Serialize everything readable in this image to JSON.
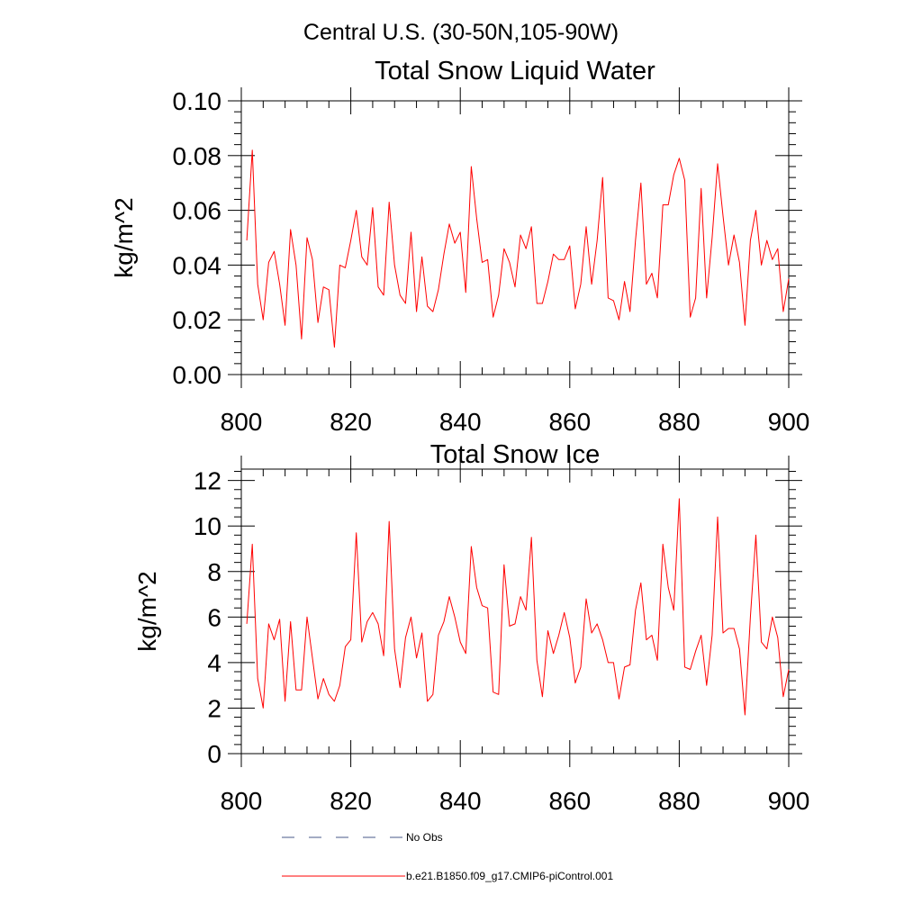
{
  "figure": {
    "title": "Central U.S. (30-50N,105-90W)"
  },
  "legend": {
    "placement": "bottom",
    "entries": [
      {
        "label": "No Obs",
        "color": "#4a5a88",
        "style": "dashed"
      },
      {
        "label": "b.e21.B1850.f09_g17.CMIP6-piControl.001",
        "color": "#ff0000",
        "style": "solid"
      }
    ]
  },
  "chart_data": [
    {
      "type": "line",
      "title": "Total Snow Liquid Water",
      "ylabel": "kg/m^2",
      "xlabel": "",
      "xlim": [
        800,
        900
      ],
      "ylim": [
        0,
        0.1
      ],
      "xticks": [
        800,
        820,
        840,
        860,
        880,
        900
      ],
      "xtick_labels": [
        "800",
        "820",
        "840",
        "860",
        "880",
        "900"
      ],
      "yticks": [
        0,
        0.02,
        0.04,
        0.06,
        0.08,
        0.1
      ],
      "ytick_labels": [
        "0.00",
        "0.02",
        "0.04",
        "0.06",
        "0.08",
        "0.10"
      ],
      "grid": false,
      "series": [
        {
          "color": "#ff0000",
          "x": [
            801,
            802,
            803,
            804,
            805,
            806,
            807,
            808,
            809,
            810,
            811,
            812,
            813,
            814,
            815,
            816,
            817,
            818,
            819,
            820,
            821,
            822,
            823,
            824,
            825,
            826,
            827,
            828,
            829,
            830,
            831,
            832,
            833,
            834,
            835,
            836,
            837,
            838,
            839,
            840,
            841,
            842,
            843,
            844,
            845,
            846,
            847,
            848,
            849,
            850,
            851,
            852,
            853,
            854,
            855,
            856,
            857,
            858,
            859,
            860,
            861,
            862,
            863,
            864,
            865,
            866,
            867,
            868,
            869,
            870,
            871,
            872,
            873,
            874,
            875,
            876,
            877,
            878,
            879,
            880,
            881,
            882,
            883,
            884,
            885,
            886,
            887,
            888,
            889,
            890,
            891,
            892,
            893,
            894,
            895,
            896,
            897,
            898,
            899,
            900
          ],
          "values": [
            0.049,
            0.082,
            0.033,
            0.02,
            0.041,
            0.045,
            0.033,
            0.018,
            0.053,
            0.04,
            0.013,
            0.05,
            0.042,
            0.019,
            0.032,
            0.031,
            0.01,
            0.04,
            0.039,
            0.049,
            0.06,
            0.043,
            0.04,
            0.061,
            0.032,
            0.029,
            0.063,
            0.04,
            0.029,
            0.026,
            0.052,
            0.023,
            0.043,
            0.025,
            0.023,
            0.031,
            0.044,
            0.055,
            0.048,
            0.052,
            0.03,
            0.076,
            0.057,
            0.041,
            0.042,
            0.021,
            0.029,
            0.046,
            0.041,
            0.032,
            0.051,
            0.046,
            0.054,
            0.026,
            0.026,
            0.034,
            0.044,
            0.042,
            0.042,
            0.047,
            0.024,
            0.033,
            0.054,
            0.033,
            0.049,
            0.072,
            0.028,
            0.027,
            0.02,
            0.034,
            0.023,
            0.049,
            0.07,
            0.033,
            0.037,
            0.028,
            0.062,
            0.062,
            0.073,
            0.079,
            0.071,
            0.021,
            0.028,
            0.068,
            0.028,
            0.05,
            0.077,
            0.058,
            0.04,
            0.051,
            0.041,
            0.018,
            0.049,
            0.06,
            0.04,
            0.049,
            0.042,
            0.046,
            0.023,
            0.035
          ]
        }
      ]
    },
    {
      "type": "line",
      "title": "Total Snow Ice",
      "ylabel": "kg/m^2",
      "xlabel": "",
      "xlim": [
        800,
        900
      ],
      "ylim": [
        0,
        12.5
      ],
      "xticks": [
        800,
        820,
        840,
        860,
        880,
        900
      ],
      "xtick_labels": [
        "800",
        "820",
        "840",
        "860",
        "880",
        "900"
      ],
      "yticks": [
        0,
        2,
        4,
        6,
        8,
        10,
        12
      ],
      "ytick_labels": [
        "0",
        "2",
        "4",
        "6",
        "8",
        "10",
        "12"
      ],
      "grid": false,
      "series": [
        {
          "color": "#ff0000",
          "x": [
            801,
            802,
            803,
            804,
            805,
            806,
            807,
            808,
            809,
            810,
            811,
            812,
            813,
            814,
            815,
            816,
            817,
            818,
            819,
            820,
            821,
            822,
            823,
            824,
            825,
            826,
            827,
            828,
            829,
            830,
            831,
            832,
            833,
            834,
            835,
            836,
            837,
            838,
            839,
            840,
            841,
            842,
            843,
            844,
            845,
            846,
            847,
            848,
            849,
            850,
            851,
            852,
            853,
            854,
            855,
            856,
            857,
            858,
            859,
            860,
            861,
            862,
            863,
            864,
            865,
            866,
            867,
            868,
            869,
            870,
            871,
            872,
            873,
            874,
            875,
            876,
            877,
            878,
            879,
            880,
            881,
            882,
            883,
            884,
            885,
            886,
            887,
            888,
            889,
            890,
            891,
            892,
            893,
            894,
            895,
            896,
            897,
            898,
            899,
            900
          ],
          "values": [
            5.7,
            9.2,
            3.3,
            2.0,
            5.7,
            5.0,
            5.9,
            2.3,
            5.8,
            2.8,
            2.8,
            6.0,
            4.2,
            2.4,
            3.3,
            2.6,
            2.3,
            3.0,
            4.7,
            5.0,
            9.7,
            4.9,
            5.8,
            6.2,
            5.7,
            4.3,
            10.2,
            4.6,
            2.9,
            5.1,
            6.0,
            4.2,
            5.3,
            2.3,
            2.6,
            5.2,
            5.8,
            6.9,
            6.0,
            4.9,
            4.4,
            9.1,
            7.3,
            6.5,
            6.4,
            2.7,
            2.6,
            8.3,
            5.6,
            5.7,
            6.9,
            6.3,
            9.5,
            4.1,
            2.5,
            5.4,
            4.4,
            5.2,
            6.2,
            5.1,
            3.1,
            3.8,
            6.8,
            5.3,
            5.7,
            5.0,
            4.0,
            4.0,
            2.4,
            3.8,
            3.9,
            6.3,
            7.5,
            5.0,
            5.2,
            4.1,
            9.2,
            7.3,
            6.3,
            11.2,
            3.8,
            3.7,
            4.5,
            5.2,
            3.0,
            5.2,
            10.4,
            5.3,
            5.5,
            5.5,
            4.6,
            1.7,
            6.0,
            9.6,
            4.9,
            4.6,
            6.0,
            5.1,
            2.5,
            3.7
          ]
        }
      ]
    }
  ]
}
